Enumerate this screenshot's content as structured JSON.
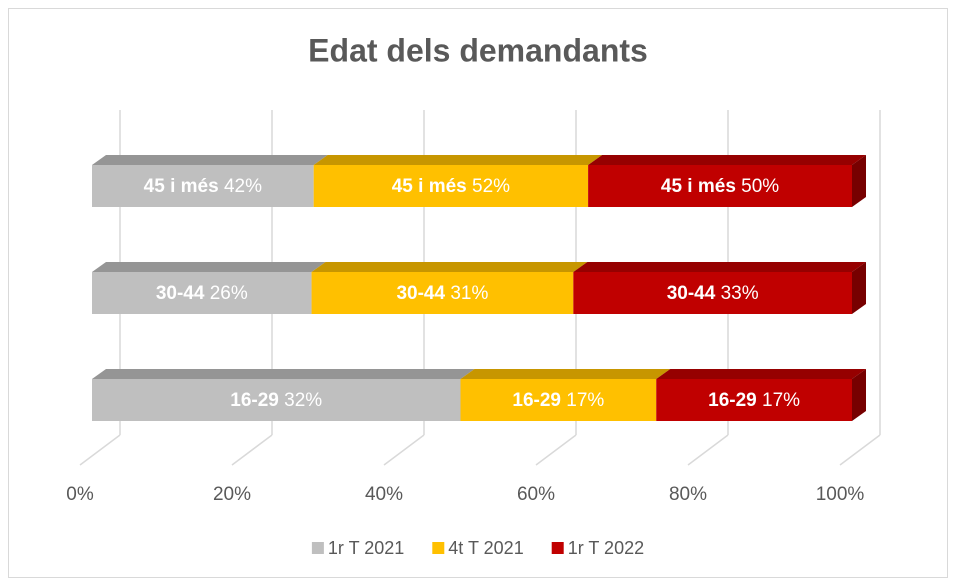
{
  "chart_data": {
    "type": "bar",
    "orientation": "horizontal",
    "stacking": "percent",
    "title": "Edat dels demandants",
    "categories": [
      "45 i més",
      "30-44",
      "16-29"
    ],
    "series": [
      {
        "name": "1r T 2021",
        "color": "#bfbfbf",
        "values": [
          42,
          26,
          32
        ],
        "value_labels": [
          "42%",
          "26%",
          "32%"
        ]
      },
      {
        "name": "4t T 2021",
        "color": "#ffc000",
        "values": [
          52,
          31,
          17
        ],
        "value_labels": [
          "52%",
          "31%",
          "17%"
        ]
      },
      {
        "name": "1r T 2022",
        "color": "#c00000",
        "values": [
          50,
          33,
          17
        ],
        "value_labels": [
          "50%",
          "33%",
          "17%"
        ]
      }
    ],
    "xlim": [
      0,
      100
    ],
    "xticks": [
      {
        "value": 0,
        "label": "0%"
      },
      {
        "value": 20,
        "label": "20%"
      },
      {
        "value": 40,
        "label": "40%"
      },
      {
        "value": 60,
        "label": "60%"
      },
      {
        "value": 80,
        "label": "80%"
      },
      {
        "value": 100,
        "label": "100%"
      }
    ],
    "grid": true,
    "legend": "bottom"
  }
}
